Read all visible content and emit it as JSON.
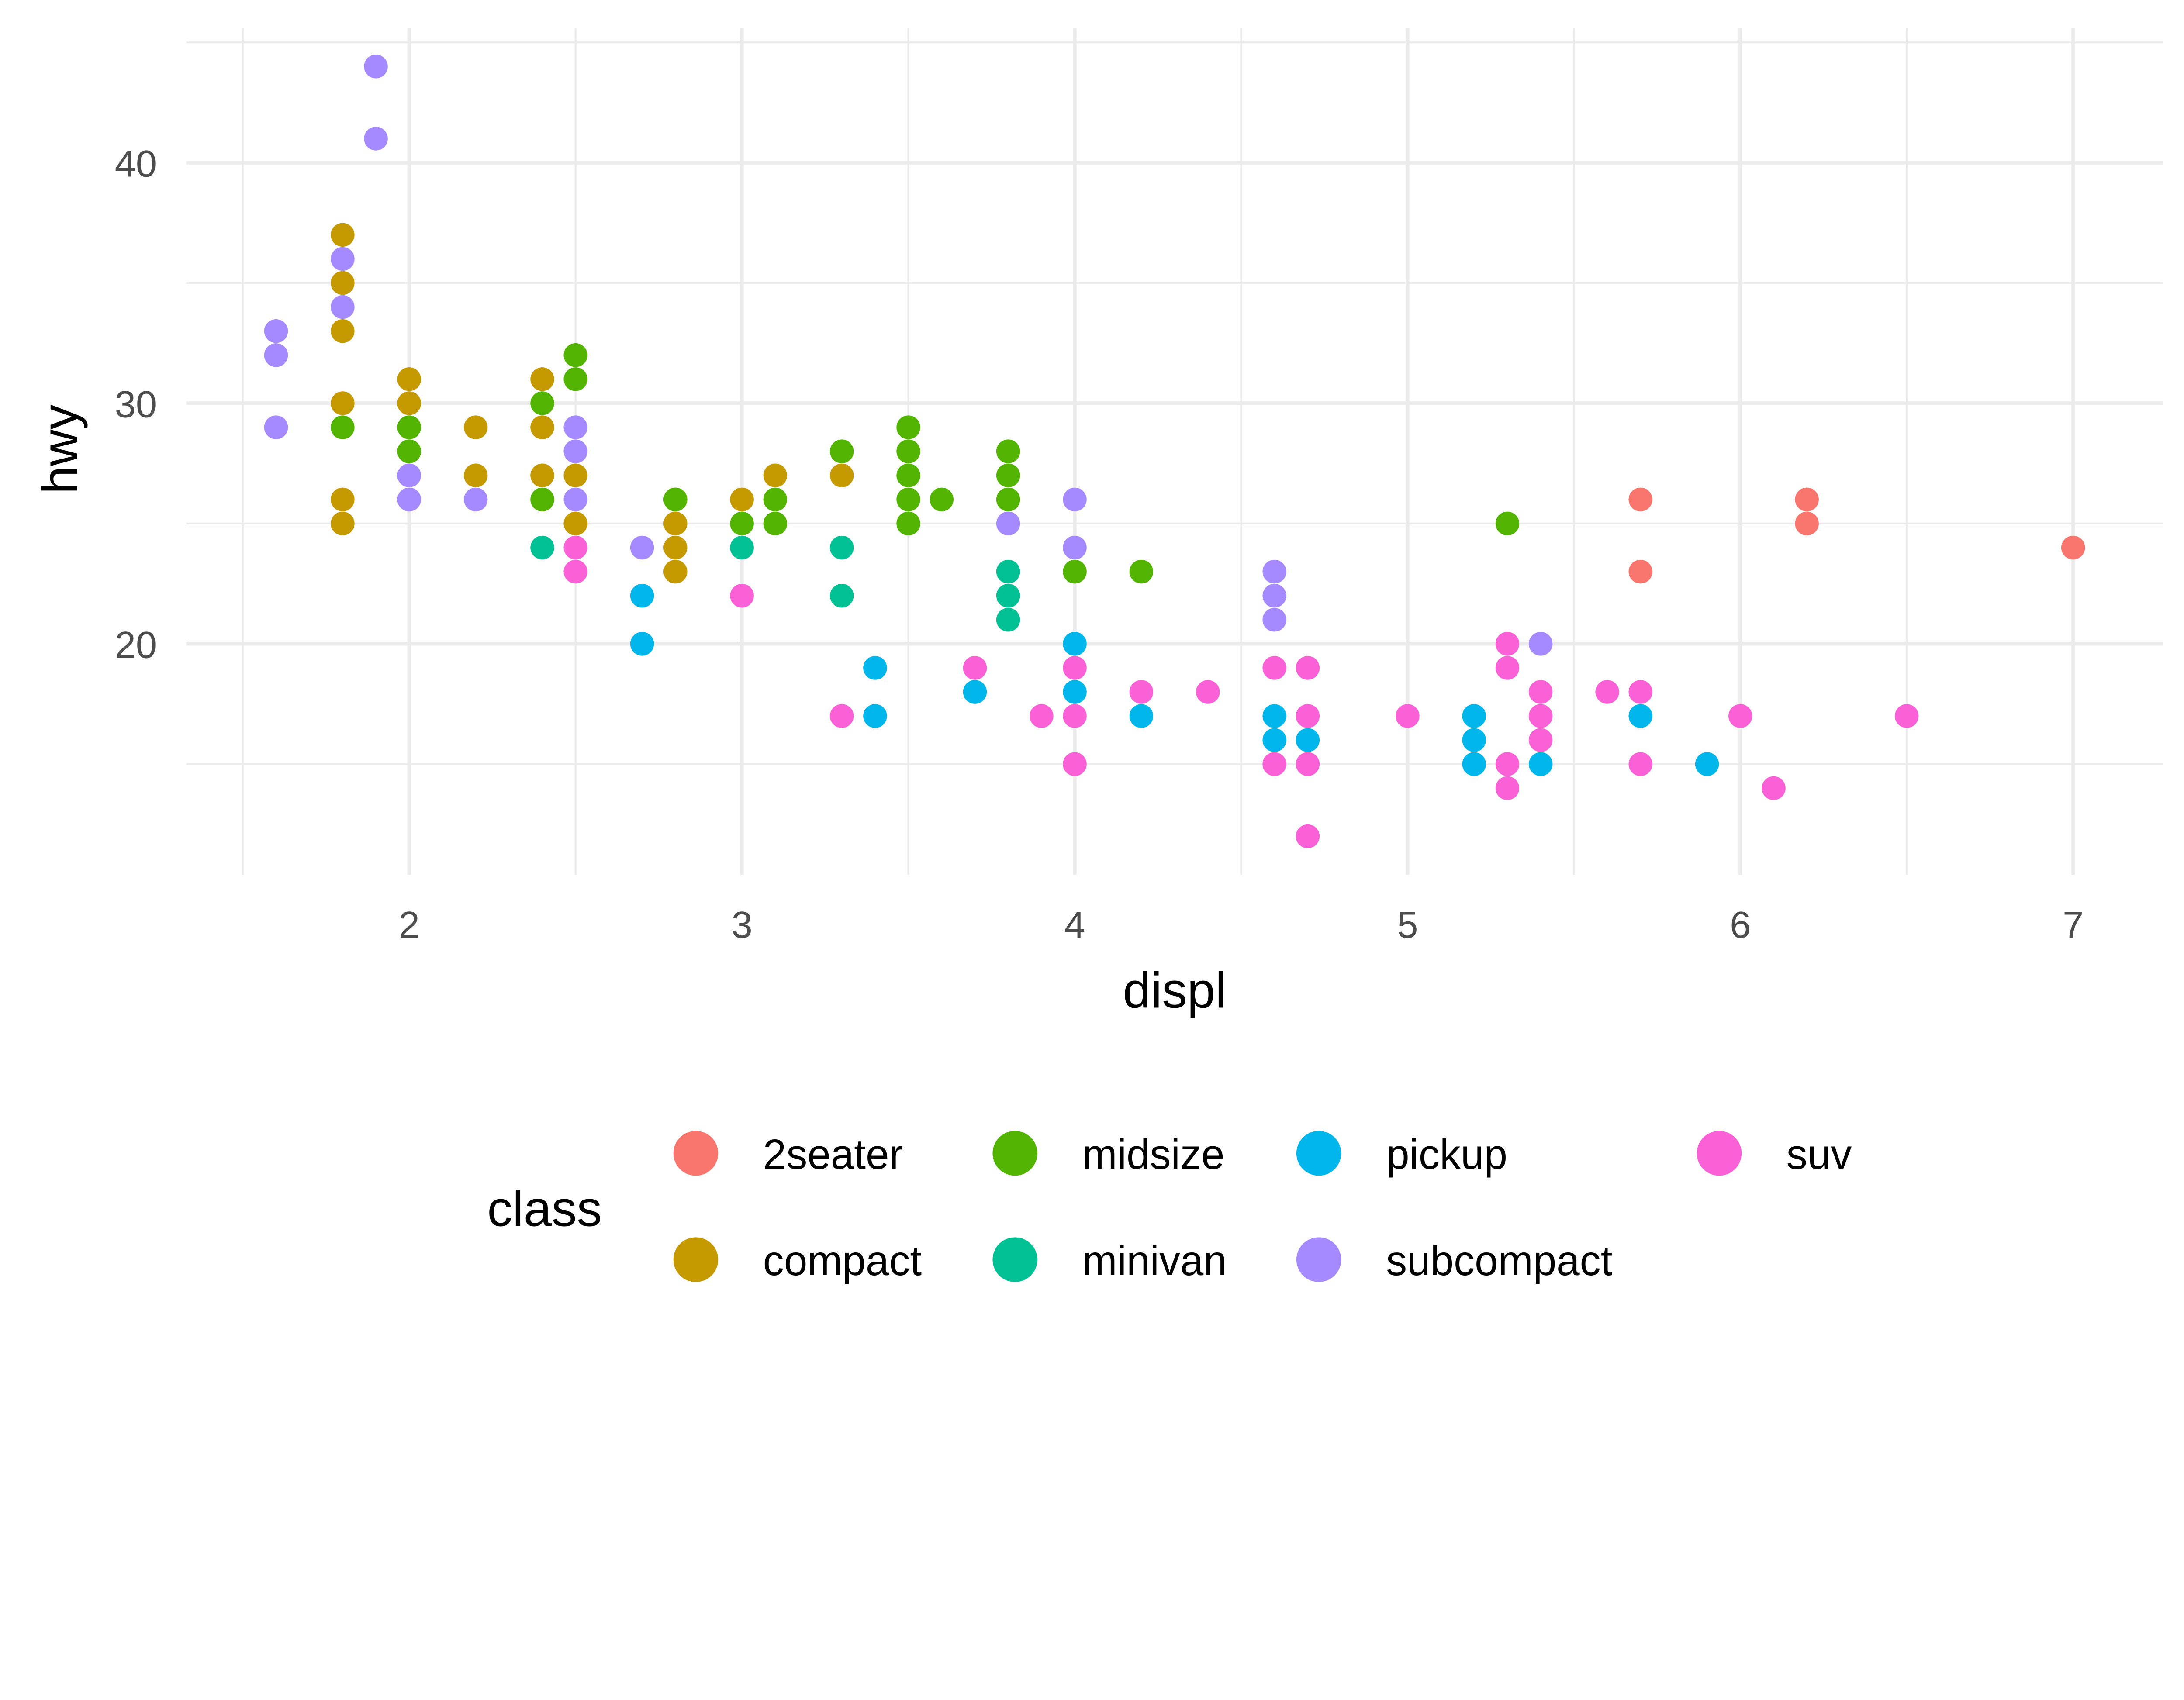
{
  "chart_data": {
    "type": "scatter",
    "title": "",
    "xlabel": "displ",
    "ylabel": "hwy",
    "xlim": [
      1.33,
      7.27
    ],
    "ylim": [
      10.4,
      45.6
    ],
    "x_ticks": [
      2,
      3,
      4,
      5,
      6,
      7
    ],
    "y_ticks": [
      20,
      30,
      40
    ],
    "grid": true,
    "legend": {
      "title": "class",
      "placement": "bottom"
    },
    "series": [
      {
        "name": "2seater",
        "color": "#F8766D",
        "points": [
          [
            5.7,
            26
          ],
          [
            5.7,
            23
          ],
          [
            6.2,
            26
          ],
          [
            6.2,
            25
          ],
          [
            7.0,
            24
          ]
        ]
      },
      {
        "name": "compact",
        "color": "#C49A00",
        "points": [
          [
            1.8,
            37
          ],
          [
            1.8,
            35
          ],
          [
            1.8,
            33
          ],
          [
            1.8,
            30
          ],
          [
            1.8,
            26
          ],
          [
            1.8,
            25
          ],
          [
            2.0,
            31
          ],
          [
            2.0,
            30
          ],
          [
            2.2,
            29
          ],
          [
            2.2,
            27
          ],
          [
            2.4,
            31
          ],
          [
            2.4,
            29
          ],
          [
            2.4,
            27
          ],
          [
            2.5,
            27
          ],
          [
            2.5,
            25
          ],
          [
            2.8,
            26
          ],
          [
            2.8,
            25
          ],
          [
            2.8,
            24
          ],
          [
            2.8,
            23
          ],
          [
            3.0,
            26
          ],
          [
            3.1,
            27
          ],
          [
            3.3,
            27
          ]
        ]
      },
      {
        "name": "midsize",
        "color": "#53B400",
        "points": [
          [
            1.8,
            29
          ],
          [
            2.0,
            29
          ],
          [
            2.0,
            28
          ],
          [
            2.4,
            30
          ],
          [
            2.4,
            26
          ],
          [
            2.5,
            32
          ],
          [
            2.5,
            31
          ],
          [
            2.8,
            26
          ],
          [
            3.0,
            25
          ],
          [
            3.1,
            26
          ],
          [
            3.1,
            25
          ],
          [
            3.3,
            28
          ],
          [
            3.5,
            29
          ],
          [
            3.5,
            28
          ],
          [
            3.5,
            27
          ],
          [
            3.5,
            26
          ],
          [
            3.5,
            25
          ],
          [
            3.6,
            26
          ],
          [
            3.8,
            28
          ],
          [
            3.8,
            27
          ],
          [
            3.8,
            26
          ],
          [
            4.0,
            23
          ],
          [
            4.2,
            23
          ],
          [
            5.3,
            25
          ]
        ]
      },
      {
        "name": "minivan",
        "color": "#00C094",
        "points": [
          [
            2.4,
            24
          ],
          [
            3.0,
            24
          ],
          [
            3.3,
            24
          ],
          [
            3.3,
            22
          ],
          [
            3.8,
            23
          ],
          [
            3.8,
            22
          ],
          [
            3.8,
            21
          ]
        ]
      },
      {
        "name": "pickup",
        "color": "#00B6EB",
        "points": [
          [
            2.7,
            22
          ],
          [
            2.7,
            20
          ],
          [
            3.4,
            19
          ],
          [
            3.4,
            17
          ],
          [
            3.7,
            18
          ],
          [
            4.0,
            20
          ],
          [
            4.0,
            18
          ],
          [
            4.2,
            17
          ],
          [
            4.6,
            17
          ],
          [
            4.6,
            16
          ],
          [
            4.7,
            16
          ],
          [
            5.2,
            17
          ],
          [
            5.2,
            16
          ],
          [
            5.2,
            15
          ],
          [
            5.4,
            15
          ],
          [
            5.7,
            17
          ],
          [
            5.9,
            15
          ]
        ]
      },
      {
        "name": "subcompact",
        "color": "#A58AFF",
        "points": [
          [
            1.6,
            33
          ],
          [
            1.6,
            32
          ],
          [
            1.6,
            29
          ],
          [
            1.9,
            44
          ],
          [
            1.9,
            41
          ],
          [
            1.8,
            36
          ],
          [
            1.8,
            34
          ],
          [
            2.0,
            27
          ],
          [
            2.0,
            26
          ],
          [
            2.2,
            26
          ],
          [
            2.5,
            29
          ],
          [
            2.5,
            28
          ],
          [
            2.5,
            26
          ],
          [
            2.7,
            24
          ],
          [
            3.8,
            25
          ],
          [
            4.0,
            26
          ],
          [
            4.0,
            24
          ],
          [
            4.6,
            23
          ],
          [
            4.6,
            22
          ],
          [
            4.6,
            21
          ],
          [
            5.4,
            20
          ]
        ]
      },
      {
        "name": "suv",
        "color": "#FB61D7",
        "points": [
          [
            2.5,
            24
          ],
          [
            2.5,
            23
          ],
          [
            3.0,
            22
          ],
          [
            3.3,
            17
          ],
          [
            3.7,
            19
          ],
          [
            3.9,
            17
          ],
          [
            4.0,
            19
          ],
          [
            4.0,
            17
          ],
          [
            4.0,
            15
          ],
          [
            4.2,
            18
          ],
          [
            4.4,
            18
          ],
          [
            4.6,
            19
          ],
          [
            4.6,
            15
          ],
          [
            4.7,
            19
          ],
          [
            4.7,
            17
          ],
          [
            4.7,
            15
          ],
          [
            4.7,
            12
          ],
          [
            5.0,
            17
          ],
          [
            5.3,
            20
          ],
          [
            5.3,
            19
          ],
          [
            5.3,
            15
          ],
          [
            5.3,
            14
          ],
          [
            5.4,
            18
          ],
          [
            5.4,
            17
          ],
          [
            5.4,
            16
          ],
          [
            5.6,
            18
          ],
          [
            5.7,
            18
          ],
          [
            5.7,
            15
          ],
          [
            6.0,
            17
          ],
          [
            6.1,
            14
          ],
          [
            6.5,
            17
          ]
        ]
      }
    ]
  }
}
